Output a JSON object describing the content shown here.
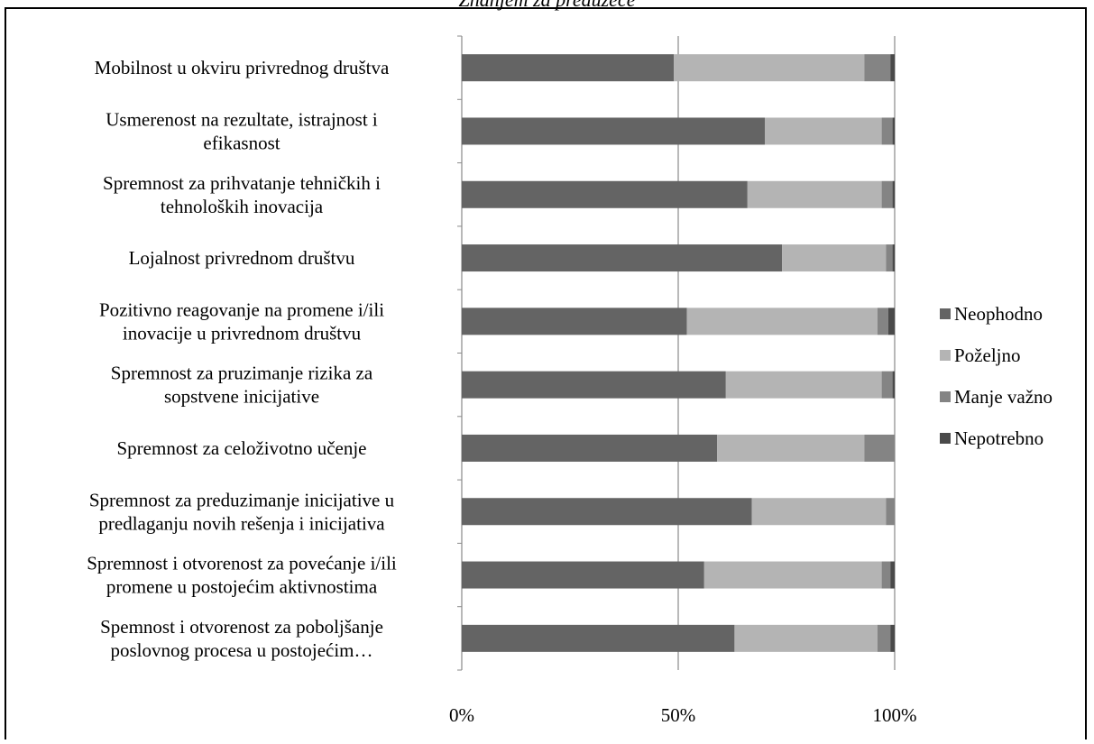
{
  "chart_data": {
    "type": "bar",
    "orientation": "horizontal",
    "stacked": "percent",
    "title": "Znanjem za preduzeće",
    "categories": [
      [
        "Mobilnost u okviru privrednog društva"
      ],
      [
        "Usmerenost na rezultate, istrajnost i",
        "efikasnost"
      ],
      [
        "Spremnost za prihvatanje tehničkih i",
        "tehnoloških inovacija"
      ],
      [
        "Lojalnost privrednom društvu"
      ],
      [
        "Pozitivno reagovanje na promene i/ili",
        "inovacije u privrednom društvu"
      ],
      [
        "Spremnost za pruzimanje rizika za",
        "sopstvene inicijative"
      ],
      [
        "Spremnost za celoživotno učenje"
      ],
      [
        "Spremnost za preduzimanje inicijative u",
        "predlaganju novih rešenja i inicijativa"
      ],
      [
        "Spremnost i otvorenost za povećanje i/ili",
        "promene u postojećim aktivnostima"
      ],
      [
        "Spemnost i otvorenost za poboljšanje",
        "poslovnog procesa u postojećim…"
      ]
    ],
    "series": [
      {
        "name": "Neophodno",
        "color": "#646464",
        "values": [
          49,
          70,
          66,
          74,
          52,
          61,
          59,
          67,
          56,
          63
        ]
      },
      {
        "name": "Poželjno",
        "color": "#b4b4b4",
        "values": [
          44,
          27,
          31,
          24,
          44,
          36,
          34,
          31,
          41,
          33
        ]
      },
      {
        "name": "Manje važno",
        "color": "#848484",
        "values": [
          6,
          2.5,
          2.5,
          1.5,
          2.5,
          2.5,
          7,
          2,
          2,
          3
        ]
      },
      {
        "name": "Nepotrebno",
        "color": "#4a4a4a",
        "values": [
          1,
          0.5,
          0.5,
          0.5,
          1.5,
          0.5,
          0,
          0,
          1,
          1
        ]
      }
    ],
    "xlim": [
      0,
      100
    ],
    "xticks": [
      "0%",
      "50%",
      "100%"
    ],
    "grid": true,
    "legend_position": "right"
  }
}
